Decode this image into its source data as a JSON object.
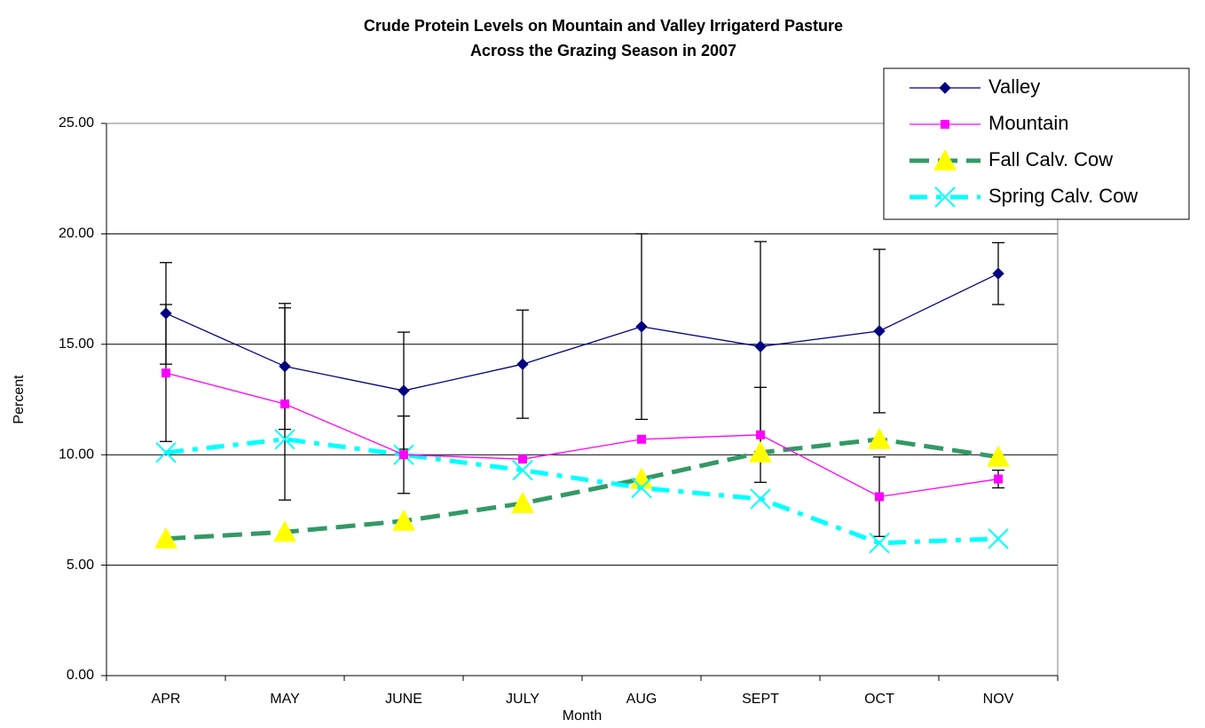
{
  "chart_data": {
    "type": "line",
    "title": [
      "Crude Protein Levels on Mountain and Valley Irrigaterd Pasture",
      "Across the Grazing Season in 2007"
    ],
    "x_label": "Month",
    "y_label": "Percent",
    "categories": [
      "APR",
      "MAY",
      "JUNE",
      "JULY",
      "AUG",
      "SEPT",
      "OCT",
      "NOV"
    ],
    "ylim": [
      0,
      25
    ],
    "yticks": [
      {
        "value": 0,
        "label": "0.00"
      },
      {
        "value": 5,
        "label": "5.00"
      },
      {
        "value": 10,
        "label": "10.00"
      },
      {
        "value": 15,
        "label": "15.00"
      },
      {
        "value": 20,
        "label": "20.00"
      },
      {
        "value": 25,
        "label": "25.00"
      }
    ],
    "grid": true,
    "series": [
      {
        "name": "Valley",
        "color": "#000080",
        "marker": "diamond",
        "line_style": "solid",
        "values": [
          16.4,
          14.0,
          12.9,
          14.1,
          15.8,
          14.9,
          15.6,
          18.2
        ],
        "errors": [
          2.3,
          2.85,
          2.65,
          2.45,
          4.2,
          4.75,
          3.7,
          1.4
        ]
      },
      {
        "name": "Mountain",
        "color": "#ff00ff",
        "marker": "square",
        "line_style": "solid",
        "values": [
          13.7,
          12.3,
          10.0,
          9.8,
          10.7,
          10.9,
          8.1,
          8.9
        ],
        "errors": [
          3.1,
          4.35,
          1.75,
          null,
          null,
          2.15,
          1.8,
          0.4
        ]
      },
      {
        "name": "Fall Calv. Cow",
        "color": "#339966",
        "marker": "triangle",
        "line_style": "dashed",
        "values": [
          6.2,
          6.5,
          7.0,
          7.8,
          8.9,
          10.1,
          10.7,
          9.9
        ]
      },
      {
        "name": "Spring Calv. Cow",
        "color": "#00ffff",
        "marker": "x",
        "line_style": "dashdot",
        "values": [
          10.1,
          10.7,
          10.0,
          9.3,
          8.5,
          8.0,
          6.0,
          6.2
        ]
      }
    ]
  }
}
